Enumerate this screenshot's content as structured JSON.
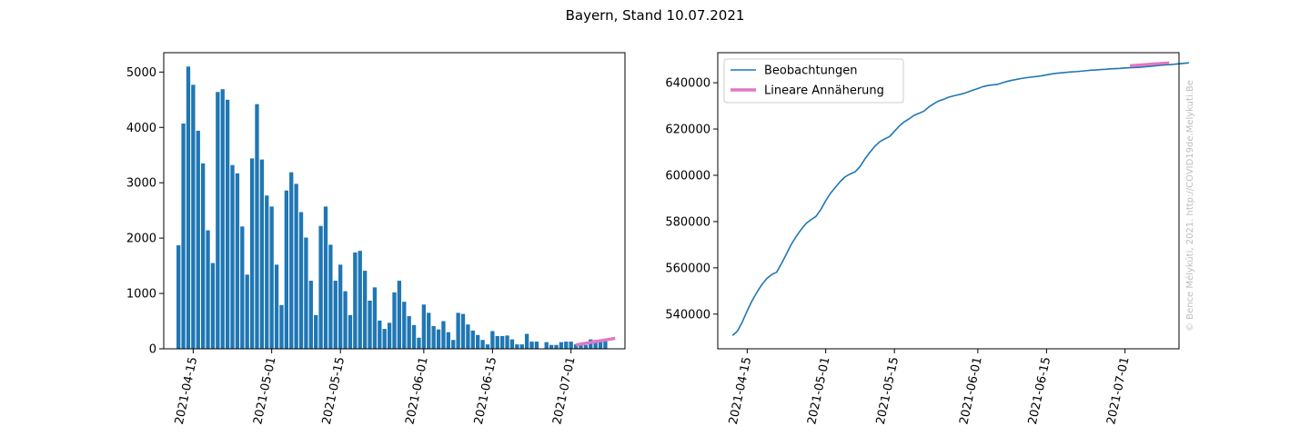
{
  "figure": {
    "title": "Bayern, Stand 10.07.2021",
    "watermark": "© Bence Mélykúti, 2021. http://COVID19de.Melykuti.Be"
  },
  "colors": {
    "bars": "#1f77b4",
    "observation_line": "#1f77b4",
    "fit_line": "#e377c2"
  },
  "chart_data": [
    {
      "type": "bar",
      "title": "",
      "xlabel": "",
      "ylabel": "",
      "x_type": "date",
      "xlim": [
        "2021-04-09",
        "2021-07-12"
      ],
      "ylim": [
        0,
        5350
      ],
      "x_ticks": [
        "2021-04-15",
        "2021-05-01",
        "2021-05-15",
        "2021-06-01",
        "2021-06-15",
        "2021-07-01"
      ],
      "y_ticks": [
        0,
        1000,
        2000,
        3000,
        4000,
        5000
      ],
      "grid": false,
      "x_start": "2021-04-12",
      "values": [
        1870,
        4070,
        5100,
        4770,
        3940,
        3350,
        2140,
        1550,
        4640,
        4690,
        4500,
        3320,
        3170,
        2210,
        1340,
        3440,
        4420,
        3420,
        2770,
        2570,
        1520,
        790,
        2860,
        3190,
        2980,
        2470,
        2010,
        1230,
        610,
        2220,
        2570,
        1880,
        1230,
        1520,
        1040,
        610,
        1740,
        1770,
        1410,
        870,
        1110,
        510,
        360,
        470,
        1020,
        1230,
        850,
        590,
        430,
        200,
        800,
        650,
        410,
        350,
        500,
        300,
        160,
        650,
        630,
        440,
        330,
        250,
        160,
        80,
        320,
        230,
        230,
        240,
        170,
        80,
        80,
        270,
        130,
        130,
        0,
        120,
        70,
        70,
        120,
        130,
        130,
        80,
        70,
        70,
        170,
        160,
        160,
        170
      ],
      "series": [
        {
          "name": "Lineare Annäherung",
          "type": "line",
          "x": [
            "2021-07-02",
            "2021-07-10"
          ],
          "values": [
            70,
            190
          ]
        }
      ]
    },
    {
      "type": "line",
      "title": "",
      "xlabel": "",
      "ylabel": "",
      "x_type": "date",
      "xlim": [
        "2021-04-09",
        "2021-07-12"
      ],
      "ylim": [
        525000,
        653000
      ],
      "x_ticks": [
        "2021-04-15",
        "2021-05-01",
        "2021-05-15",
        "2021-06-01",
        "2021-06-15",
        "2021-07-01"
      ],
      "y_ticks": [
        540000,
        560000,
        580000,
        600000,
        620000,
        640000
      ],
      "grid": false,
      "legend_position": "top-left",
      "series": [
        {
          "name": "Beobachtungen",
          "x_start": "2021-04-12",
          "values": [
            530750,
            532600,
            536600,
            541400,
            545800,
            549500,
            552800,
            555400,
            557100,
            558100,
            561900,
            566000,
            570200,
            573600,
            576600,
            579200,
            580800,
            582200,
            585200,
            589000,
            592300,
            594900,
            597400,
            599400,
            600600,
            601500,
            603800,
            607100,
            609900,
            612500,
            614500,
            615700,
            616700,
            619000,
            621300,
            623100,
            624400,
            625900,
            626800,
            627700,
            629500,
            630900,
            632100,
            632800,
            633700,
            634300,
            634800,
            635300,
            636000,
            636800,
            637500,
            638300,
            638800,
            639100,
            639300,
            640000,
            640600,
            641100,
            641500,
            641900,
            642200,
            642500,
            642700,
            643000,
            643400,
            643800,
            644100,
            644300,
            644500,
            644700,
            644800,
            645000,
            645200,
            645400,
            645500,
            645700,
            645800,
            646000,
            646100,
            646200,
            646400,
            646500,
            646600,
            646700,
            646900,
            647100,
            647300,
            647500,
            647700,
            647800,
            648000,
            648200,
            648400,
            648600
          ]
        },
        {
          "name": "Lineare Annäherung",
          "x": [
            "2021-07-02",
            "2021-07-10"
          ],
          "values": [
            647300,
            648600
          ]
        }
      ]
    }
  ]
}
